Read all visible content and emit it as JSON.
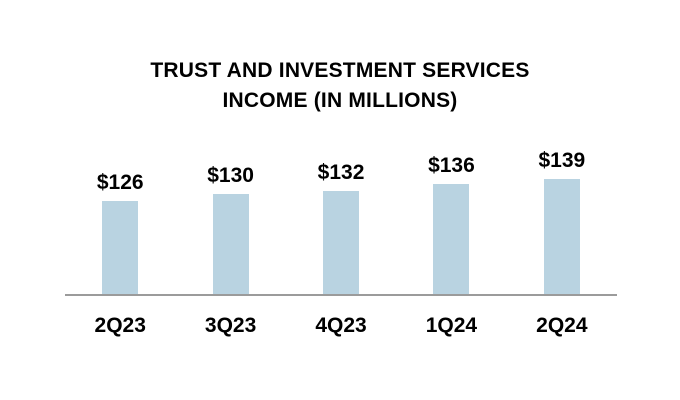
{
  "page": {
    "background": "#ffffff"
  },
  "chart": {
    "title_display": "TRUST AND INVESTMENT SERVICES\nINCOME (IN MILLIONS)"
  },
  "chart_data": {
    "type": "bar",
    "title": "TRUST AND INVESTMENT SERVICES INCOME (IN MILLIONS)",
    "categories": [
      "2Q23",
      "3Q23",
      "4Q23",
      "1Q24",
      "2Q24"
    ],
    "values": [
      126,
      130,
      132,
      136,
      139
    ],
    "value_labels": [
      "$126",
      "$130",
      "$132",
      "$136",
      "$139"
    ],
    "xlabel": "",
    "ylabel": "",
    "ylim": [
      70,
      160
    ],
    "grid": false,
    "legend": false,
    "bar_color": "#b9d3e1",
    "axis_line_color": "#9b9b9b",
    "text_color": "#000000"
  }
}
